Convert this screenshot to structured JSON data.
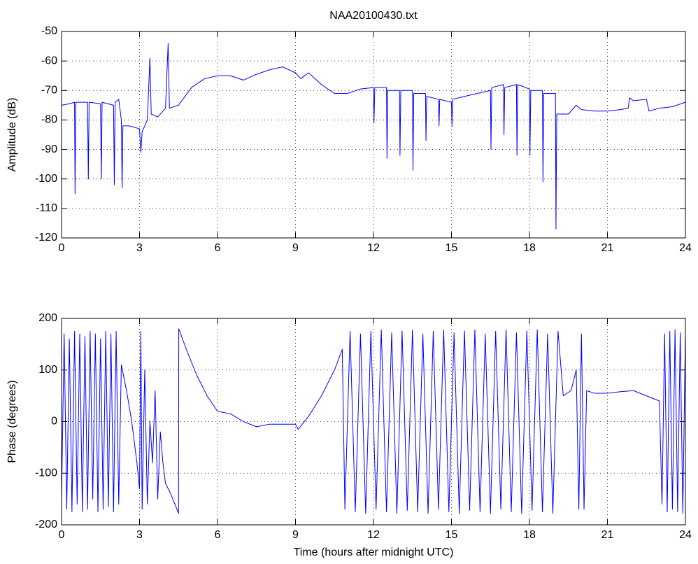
{
  "chart_data": [
    {
      "type": "line",
      "title": "NAA20100430.txt",
      "ylabel": "Amplitude (dB)",
      "xlim": [
        0,
        24
      ],
      "xticks": [
        0,
        3,
        6,
        9,
        12,
        15,
        18,
        21,
        24
      ],
      "ylim": [
        -120,
        -50
      ],
      "yticks": [
        -120,
        -110,
        -100,
        -90,
        -80,
        -70,
        -60,
        -50
      ],
      "grid": true,
      "x": [
        0,
        0.3,
        0.5,
        0.52,
        0.55,
        0.8,
        1.0,
        1.03,
        1.06,
        1.5,
        1.53,
        1.56,
        2.0,
        2.03,
        2.06,
        2.2,
        2.3,
        2.33,
        2.36,
        2.6,
        3.0,
        3.05,
        3.1,
        3.3,
        3.4,
        3.45,
        3.7,
        4.0,
        4.1,
        4.15,
        4.5,
        5,
        5.5,
        6,
        6.5,
        7,
        7.5,
        8,
        8.5,
        9,
        9.2,
        9.5,
        10,
        10.5,
        11,
        11.5,
        12,
        12.02,
        12.05,
        12.5,
        12.52,
        12.55,
        13,
        13.02,
        13.05,
        13.5,
        13.52,
        13.55,
        14,
        14.02,
        14.05,
        14.5,
        14.52,
        14.55,
        15,
        15.02,
        15.05,
        15.5,
        16,
        16.5,
        16.52,
        16.55,
        17,
        17.02,
        17.05,
        17.5,
        17.52,
        17.55,
        18,
        18.02,
        18.05,
        18.5,
        18.52,
        18.55,
        19,
        19.02,
        19.05,
        19.5,
        19.8,
        20,
        20.5,
        21,
        21.5,
        21.8,
        21.85,
        22,
        22.5,
        22.6,
        23,
        23.5,
        24
      ],
      "series": [
        {
          "color": "#0000ff",
          "values": [
            -75,
            -74.5,
            -74,
            -105,
            -74,
            -74,
            -74,
            -100,
            -74,
            -74.5,
            -100,
            -74,
            -75,
            -102,
            -74,
            -73,
            -80,
            -103,
            -82,
            -82,
            -83,
            -91,
            -84,
            -80,
            -59,
            -78,
            -79,
            -76,
            -54,
            -76,
            -75,
            -69,
            -66,
            -65,
            -65,
            -66.5,
            -64.5,
            -63,
            -62,
            -64,
            -66,
            -64,
            -68,
            -71,
            -71,
            -69.5,
            -69,
            -81,
            -69,
            -69,
            -93,
            -70,
            -70,
            -92,
            -70,
            -70,
            -97,
            -71,
            -71,
            -87,
            -72,
            -73,
            -82,
            -73,
            -74,
            -82,
            -73,
            -72,
            -71,
            -70,
            -90,
            -69,
            -68,
            -85,
            -69,
            -68,
            -92,
            -68,
            -69.5,
            -92,
            -70,
            -70,
            -101,
            -71,
            -71,
            -117,
            -78,
            -78,
            -75,
            -76.5,
            -77,
            -77,
            -76.5,
            -76,
            -72.5,
            -73.5,
            -73,
            -77,
            -76,
            -75.5,
            -74
          ]
        }
      ]
    },
    {
      "type": "line",
      "xlabel": "Time (hours after midnight UTC)",
      "ylabel": "Phase (degrees)",
      "xlim": [
        0,
        24
      ],
      "xticks": [
        0,
        3,
        6,
        9,
        12,
        15,
        18,
        21,
        24
      ],
      "ylim": [
        -200,
        200
      ],
      "yticks": [
        -200,
        -100,
        0,
        100,
        200
      ],
      "grid": true,
      "x": [
        0,
        0.1,
        0.2,
        0.3,
        0.4,
        0.5,
        0.6,
        0.7,
        0.8,
        0.9,
        1.0,
        1.1,
        1.2,
        1.3,
        1.4,
        1.5,
        1.6,
        1.7,
        1.8,
        1.9,
        2.0,
        2.1,
        2.2,
        2.3,
        2.5,
        2.7,
        2.9,
        3.0,
        3.05,
        3.1,
        3.2,
        3.3,
        3.4,
        3.5,
        3.6,
        3.7,
        3.8,
        3.9,
        4.0,
        4.2,
        4.4,
        4.5,
        4.51,
        4.8,
        5.2,
        5.6,
        6,
        6.5,
        7,
        7.5,
        8,
        8.5,
        9,
        9.1,
        9.5,
        10,
        10.5,
        10.8,
        10.9,
        11.1,
        11.3,
        11.5,
        11.7,
        11.9,
        12.1,
        12.3,
        12.5,
        12.7,
        12.9,
        13.1,
        13.3,
        13.5,
        13.7,
        13.9,
        14.1,
        14.3,
        14.5,
        14.7,
        14.9,
        15.1,
        15.3,
        15.5,
        15.7,
        15.9,
        16.1,
        16.3,
        16.5,
        16.7,
        16.9,
        17.1,
        17.3,
        17.5,
        17.7,
        17.9,
        18.1,
        18.3,
        18.5,
        18.7,
        18.9,
        19.1,
        19.3,
        19.6,
        19.8,
        19.9,
        20.0,
        20.1,
        20.2,
        20.5,
        21,
        21.5,
        22,
        22.5,
        23,
        23.1,
        23.2,
        23.3,
        23.4,
        23.5,
        23.6,
        23.7,
        23.8,
        23.9,
        24
      ],
      "series": [
        {
          "color": "#0000ff",
          "values": [
            -150,
            170,
            -170,
            160,
            -175,
            175,
            -160,
            170,
            -175,
            165,
            -170,
            175,
            -150,
            170,
            -175,
            160,
            -170,
            175,
            -165,
            170,
            -175,
            175,
            -160,
            110,
            60,
            0,
            -80,
            -130,
            175,
            -170,
            100,
            -160,
            0,
            -80,
            60,
            -150,
            -20,
            -80,
            -120,
            -140,
            -165,
            -178,
            180,
            140,
            90,
            50,
            20,
            15,
            0,
            -10,
            -5,
            -5,
            -5,
            -15,
            10,
            50,
            100,
            140,
            -170,
            175,
            -175,
            170,
            -178,
            175,
            -170,
            178,
            -175,
            172,
            -178,
            176,
            -172,
            178,
            -175,
            170,
            -178,
            175,
            -170,
            178,
            -175,
            172,
            -178,
            176,
            -172,
            178,
            -175,
            170,
            -178,
            175,
            -170,
            178,
            -175,
            172,
            -178,
            176,
            -172,
            178,
            -175,
            170,
            -178,
            175,
            50,
            60,
            100,
            -170,
            170,
            -170,
            60,
            55,
            55,
            58,
            60,
            50,
            40,
            -160,
            170,
            -175,
            175,
            -170,
            178,
            -175,
            172,
            -178,
            175
          ]
        }
      ]
    }
  ]
}
